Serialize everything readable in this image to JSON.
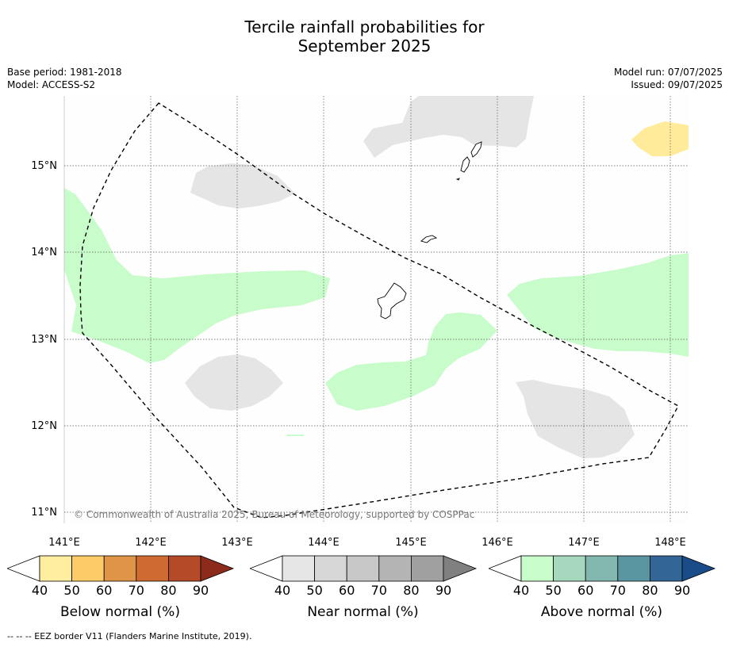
{
  "header": {
    "title_line1": "Tercile rainfall probabilities for",
    "title_line2": "September 2025",
    "base_period": "Base period: 1981-2018",
    "model": "Model: ACCESS-S2",
    "model_run": "Model run: 07/07/2025",
    "issued": "Issued: 09/07/2025"
  },
  "map": {
    "lon_labels": [
      "141°E",
      "142°E",
      "143°E",
      "144°E",
      "145°E",
      "146°E",
      "147°E",
      "148°E"
    ],
    "lat_labels": [
      "15°N",
      "14°N",
      "13°N",
      "12°N",
      "11°N"
    ],
    "copyright": "© Commonwealth of Australia 2025, Bureau of Meteorology, supported by COSPPac",
    "colors": {
      "near_normal_40": "#e5e5e5",
      "above_normal_40": "#c9fccb",
      "below_normal_40": "#ffeb9a",
      "eez_border": "#000000"
    }
  },
  "colorbars": [
    {
      "id": "below",
      "label": "Below normal (%)",
      "ticks": [
        "40",
        "50",
        "60",
        "70",
        "80",
        "90"
      ],
      "colors": [
        "#ffeea0",
        "#fdcc68",
        "#e09448",
        "#d06a33",
        "#b54a28",
        "#8c2a1c"
      ]
    },
    {
      "id": "near",
      "label": "Near normal (%)",
      "ticks": [
        "40",
        "50",
        "60",
        "70",
        "80",
        "90"
      ],
      "colors": [
        "#e6e6e6",
        "#d7d7d7",
        "#c8c8c8",
        "#b4b4b4",
        "#a0a0a0",
        "#808080"
      ]
    },
    {
      "id": "above",
      "label": "Above normal (%)",
      "ticks": [
        "40",
        "50",
        "60",
        "70",
        "80",
        "90"
      ],
      "colors": [
        "#c9fccb",
        "#a5d8bc",
        "#82b8b0",
        "#5a95a2",
        "#336697",
        "#1a4c8a"
      ]
    }
  ],
  "footnote": "--  --  -- EEZ border V11 (Flanders Marine Institute, 2019)."
}
